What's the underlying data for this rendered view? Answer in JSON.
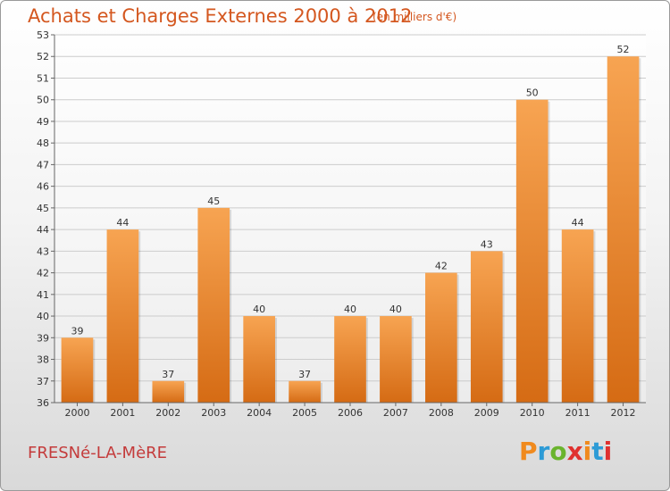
{
  "header": {
    "title": "Achats et Charges Externes 2000 à 2012",
    "subtitle": "(en milliers d'€)"
  },
  "footer": {
    "commune": "FRESNé-LA-MèRE",
    "logo": "Proxiti"
  },
  "colors": {
    "bar_light": "#f7a452",
    "bar_dark": "#d56b14",
    "title": "#d4571f",
    "commune": "#c43b3b",
    "grid": "#cccccc",
    "logo_letters": [
      "#f08a1e",
      "#2d9bd6",
      "#6ab42d",
      "#e0312f",
      "#f08a1e",
      "#2d9bd6",
      "#e0312f"
    ]
  },
  "chart_data": {
    "type": "bar",
    "title": "Achats et Charges Externes 2000 à 2012",
    "subtitle": "(en milliers d'€)",
    "categories": [
      "2000",
      "2001",
      "2002",
      "2003",
      "2004",
      "2005",
      "2006",
      "2007",
      "2008",
      "2009",
      "2010",
      "2011",
      "2012"
    ],
    "values": [
      39,
      44,
      37,
      45,
      40,
      37,
      40,
      40,
      42,
      43,
      50,
      44,
      52
    ],
    "ylim": [
      36,
      53
    ],
    "yticks": [
      36,
      37,
      38,
      39,
      40,
      41,
      42,
      43,
      44,
      45,
      46,
      47,
      48,
      49,
      50,
      51,
      52,
      53
    ],
    "grid": true,
    "data_labels": true
  }
}
